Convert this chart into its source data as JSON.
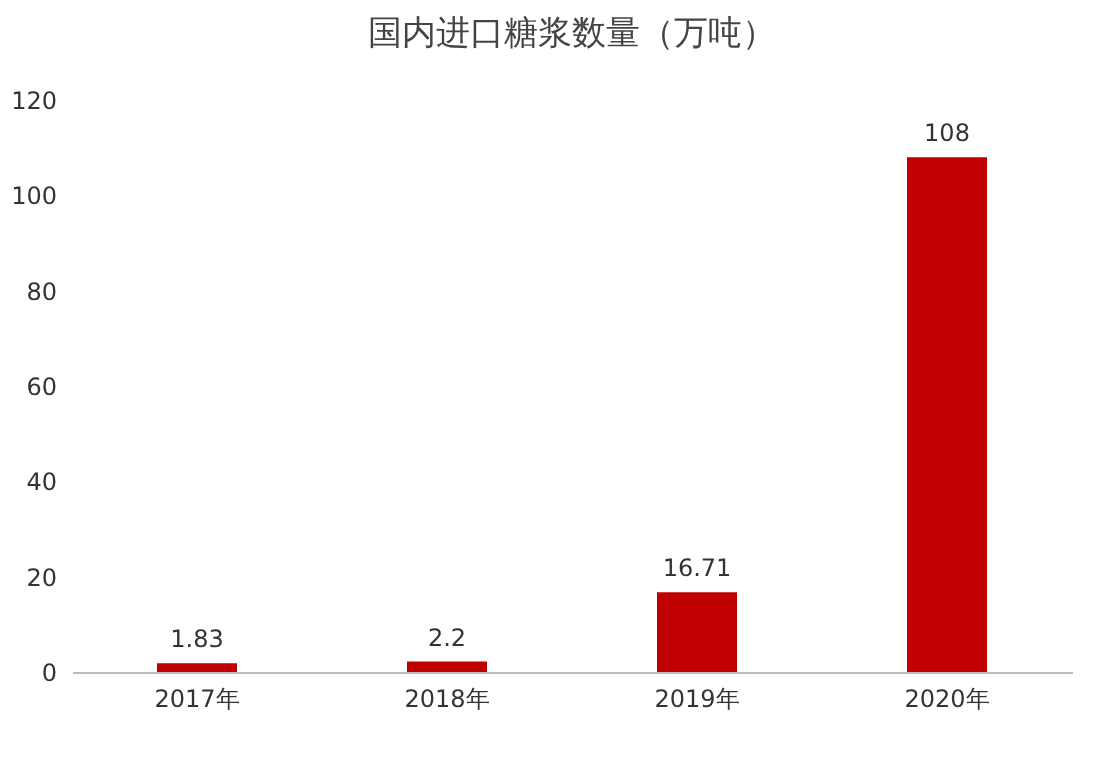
{
  "chart_data": {
    "type": "bar",
    "title": "国内进口糖浆数量（万吨）",
    "categories": [
      "2017年",
      "2018年",
      "2019年",
      "2020年"
    ],
    "values": [
      1.83,
      2.2,
      16.71,
      108
    ],
    "color": "#c00000",
    "ylim": [
      0,
      120
    ],
    "yticks": [
      0,
      20,
      40,
      60,
      80,
      100,
      120
    ],
    "grid": false,
    "data_labels": true
  }
}
